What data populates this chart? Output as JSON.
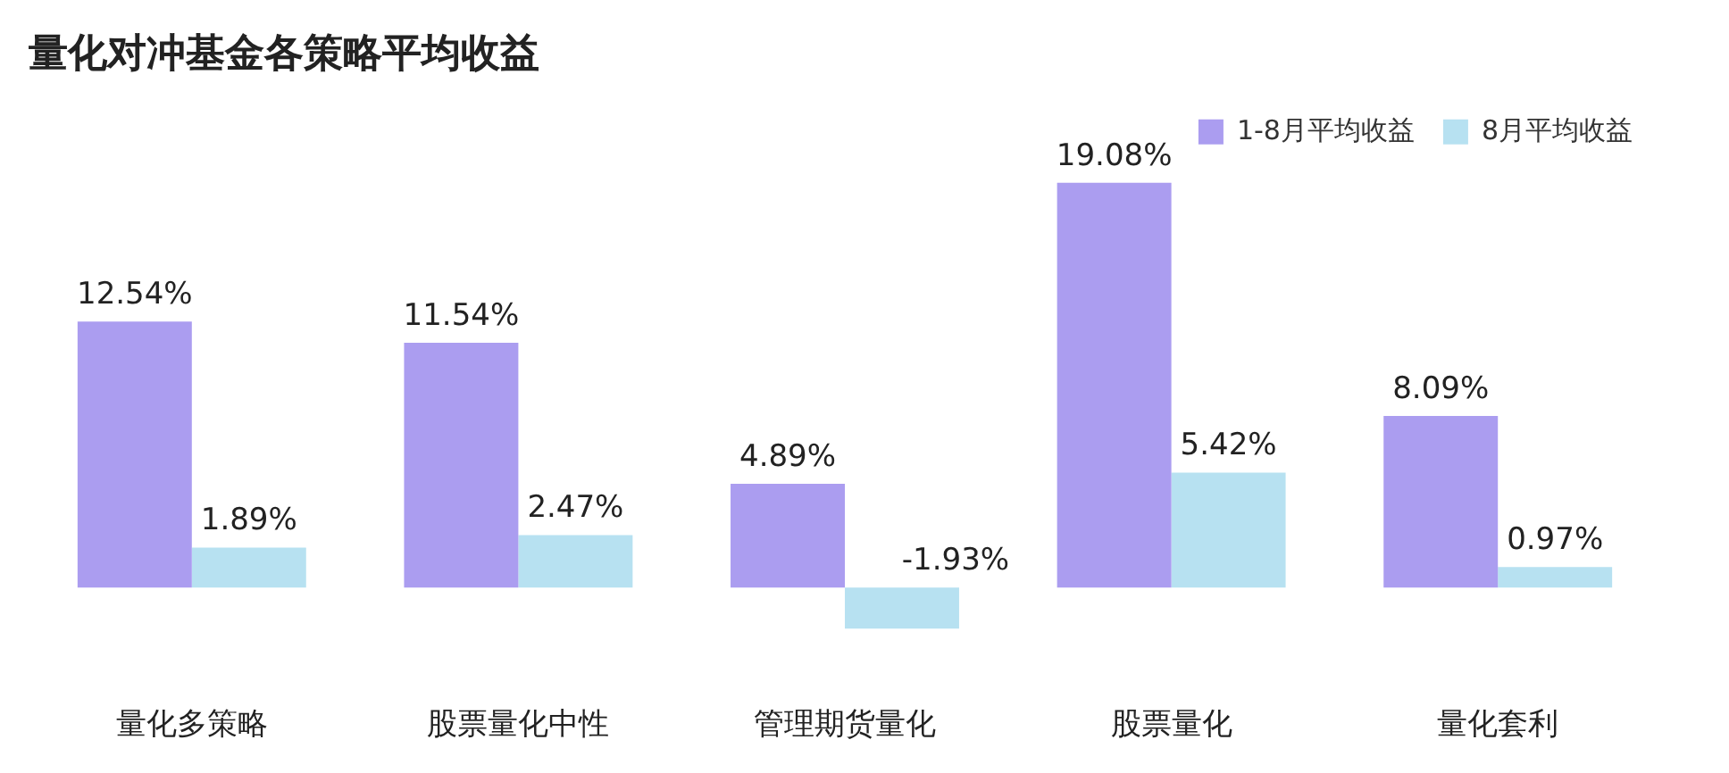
{
  "chart_data": {
    "type": "bar",
    "title": "量化对冲基金各策略平均收益",
    "categories": [
      "量化多策略",
      "股票量化中性",
      "管理期货量化",
      "股票量化",
      "量化套利"
    ],
    "series": [
      {
        "name": "1-8月平均收益",
        "color": "#ab9df0",
        "values": [
          12.54,
          11.54,
          4.89,
          19.08,
          8.09
        ],
        "value_labels": [
          "12.54%",
          "11.54%",
          "4.89%",
          "19.08%",
          "8.09%"
        ]
      },
      {
        "name": "8月平均收益",
        "color": "#b7e1f1",
        "values": [
          1.89,
          2.47,
          -1.93,
          5.42,
          0.97
        ],
        "value_labels": [
          "1.89%",
          "2.47%",
          "-1.93%",
          "5.42%",
          "0.97%"
        ]
      }
    ],
    "tick_labels": "x",
    "legend": "top right",
    "grid": false
  }
}
